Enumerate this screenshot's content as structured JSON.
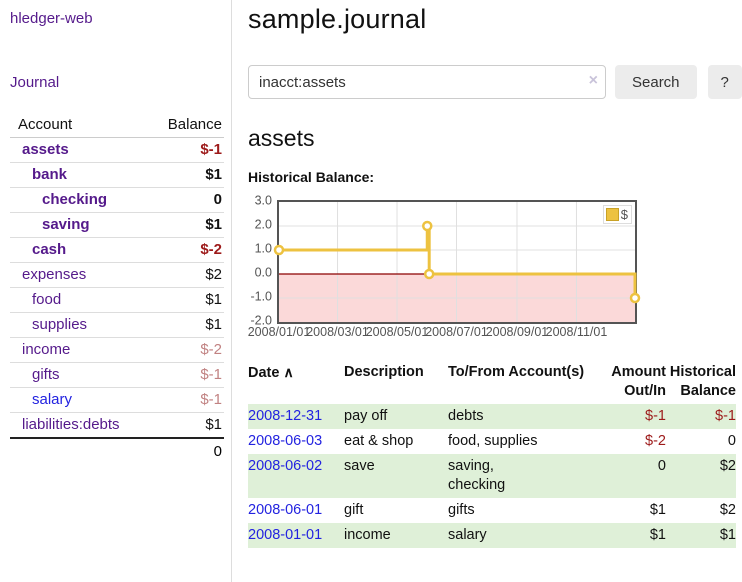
{
  "colors": {
    "purple": "#551a8b",
    "blue": "#2323e0",
    "neg-strong": "#9d1a1a",
    "neg-muted": "#c18282",
    "row-green": "#dff0d8",
    "line": "#edc240",
    "pink": "#fbd9d9",
    "zero": "#8b0000",
    "grid": "#e0e0e0",
    "frame": "#545454",
    "tick": "#545454"
  },
  "sidebar": {
    "brand": "hledger-web",
    "journal_label": "Journal",
    "accounts_table": {
      "headers": [
        "Account",
        "Balance"
      ],
      "rows": [
        {
          "name": "assets",
          "balance": "$-1",
          "indent": 1,
          "bold": true,
          "balance_color": "neg-strong"
        },
        {
          "name": "bank",
          "balance": "$1",
          "indent": 2,
          "bold": true
        },
        {
          "name": "checking",
          "balance": "0",
          "indent": 3,
          "bold": true
        },
        {
          "name": "saving",
          "balance": "$1",
          "indent": 3,
          "bold": true
        },
        {
          "name": "cash",
          "balance": "$-2",
          "indent": 2,
          "bold": true,
          "balance_color": "neg-strong"
        },
        {
          "name": "expenses",
          "balance": "$2",
          "indent": 1,
          "bold": false
        },
        {
          "name": "food",
          "balance": "$1",
          "indent": 2,
          "bold": false
        },
        {
          "name": "supplies",
          "balance": "$1",
          "indent": 2,
          "bold": false
        },
        {
          "name": "income",
          "balance": "$-2",
          "indent": 1,
          "bold": false,
          "balance_color": "neg-muted"
        },
        {
          "name": "gifts",
          "balance": "$-1",
          "indent": 2,
          "bold": false,
          "balance_color": "neg-muted"
        },
        {
          "name": "salary",
          "balance": "$-1",
          "indent": 2,
          "bold": false,
          "balance_color": "neg-muted",
          "name_color": "blue"
        },
        {
          "name": "liabilities:debts",
          "balance": "$1",
          "indent": 1,
          "bold": false
        }
      ],
      "total": "0"
    }
  },
  "header": {
    "title": "sample.journal"
  },
  "search": {
    "value": "inacct:assets",
    "clear_icon": "×",
    "button_label": "Search",
    "help_label": "?"
  },
  "account_view": {
    "heading": "assets",
    "chart_label": "Historical Balance:"
  },
  "chart_data": {
    "type": "line",
    "step": true,
    "title": "Historical Balance:",
    "series": [
      {
        "name": "$",
        "points": [
          [
            "2008-01-01",
            1
          ],
          [
            "2008-06-01",
            2
          ],
          [
            "2008-06-03",
            0
          ],
          [
            "2008-12-31",
            -1
          ]
        ]
      }
    ],
    "x_start": "2008-01-01",
    "x_end": "2008-12-31",
    "yticks": [
      "3.0",
      "2.0",
      "1.0",
      "0.0",
      "-1.0",
      "-2.0"
    ],
    "ylim": [
      -2,
      3
    ],
    "xticks": [
      {
        "label": "2008/01/01",
        "date": "2008-01-01"
      },
      {
        "label": "2008/03/01",
        "date": "2008-03-01"
      },
      {
        "label": "2008/05/01",
        "date": "2008-05-01"
      },
      {
        "label": "2008/07/01",
        "date": "2008-07-01"
      },
      {
        "label": "2008/09/01",
        "date": "2008-09-01"
      },
      {
        "label": "2008/11/01",
        "date": "2008-11-01"
      }
    ],
    "legend": {
      "label": "$",
      "position": "top-right"
    },
    "grid": true,
    "negative_region_shaded": true
  },
  "register": {
    "headers": [
      "Date",
      "Description",
      "To/From\nAccount(s)",
      "Amount\nOut/In",
      "Historical\nBalance"
    ],
    "sort_icon": "∧",
    "rows": [
      {
        "date": "2008-12-31",
        "description": "pay off",
        "accounts": "debts",
        "amount": "$-1",
        "balance": "$-1"
      },
      {
        "date": "2008-06-03",
        "description": "eat & shop",
        "accounts": "food, supplies",
        "amount": "$-2",
        "balance": "0"
      },
      {
        "date": "2008-06-02",
        "description": "save",
        "accounts": "saving,\nchecking",
        "amount": "0",
        "balance": "$2"
      },
      {
        "date": "2008-06-01",
        "description": "gift",
        "accounts": "gifts",
        "amount": "$1",
        "balance": "$2"
      },
      {
        "date": "2008-01-01",
        "description": "income",
        "accounts": "salary",
        "amount": "$1",
        "balance": "$1"
      }
    ]
  }
}
